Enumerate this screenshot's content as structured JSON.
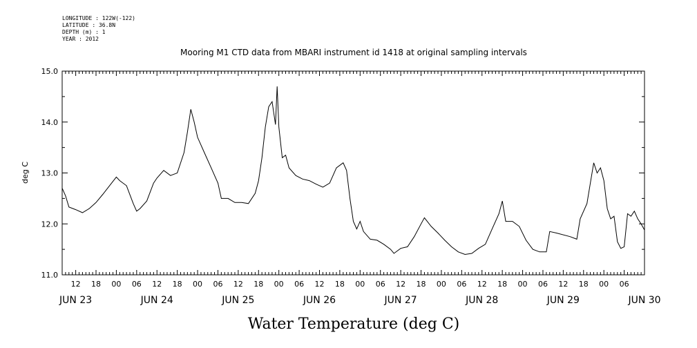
{
  "header": {
    "longitude": "LONGITUDE : 122W(-122)",
    "latitude": "LATITUDE : 36.8N",
    "depth": "DEPTH (m) : 1",
    "year": "YEAR : 2012"
  },
  "chart_data": {
    "type": "line",
    "title": "Mooring M1 CTD data from MBARI instrument id 1418 at original sampling intervals",
    "xlabel": "Water Temperature (deg C)",
    "ylabel": "deg C",
    "ylim": [
      11.0,
      15.0
    ],
    "xlim_hours_note": "JUN 23 08:00 to JUN 30 12:00",
    "y_ticks": [
      "11.0",
      "12.0",
      "13.0",
      "14.0",
      "15.0"
    ],
    "hour_tick_labels": [
      "12",
      "18",
      "00",
      "06",
      "12",
      "18",
      "00",
      "06",
      "12",
      "18",
      "00",
      "06",
      "12",
      "18",
      "00",
      "06",
      "12",
      "18",
      "00",
      "06",
      "12",
      "18",
      "00",
      "06",
      "12",
      "18",
      "00",
      "06"
    ],
    "day_labels": [
      "JUN 23",
      "JUN 24",
      "JUN 25",
      "JUN 26",
      "JUN 27",
      "JUN 28",
      "JUN 29",
      "JUN 30"
    ],
    "grid": false,
    "series": [
      {
        "line_color": "#000000",
        "points": [
          [
            "JUN 23 08:00",
            12.7
          ],
          [
            "JUN 23 09:00",
            12.55
          ],
          [
            "JUN 23 10:00",
            12.33
          ],
          [
            "JUN 23 12:00",
            12.28
          ],
          [
            "JUN 23 14:00",
            12.22
          ],
          [
            "JUN 23 16:00",
            12.3
          ],
          [
            "JUN 23 18:00",
            12.42
          ],
          [
            "JUN 23 20:00",
            12.58
          ],
          [
            "JUN 23 22:00",
            12.75
          ],
          [
            "JUN 24 00:00",
            12.92
          ],
          [
            "JUN 24 01:00",
            12.85
          ],
          [
            "JUN 24 03:00",
            12.75
          ],
          [
            "JUN 24 05:00",
            12.4
          ],
          [
            "JUN 24 06:00",
            12.25
          ],
          [
            "JUN 24 07:00",
            12.3
          ],
          [
            "JUN 24 09:00",
            12.45
          ],
          [
            "JUN 24 11:00",
            12.8
          ],
          [
            "JUN 24 12:00",
            12.9
          ],
          [
            "JUN 24 14:00",
            13.05
          ],
          [
            "JUN 24 16:00",
            12.95
          ],
          [
            "JUN 24 18:00",
            13.0
          ],
          [
            "JUN 24 20:00",
            13.4
          ],
          [
            "JUN 24 21:00",
            13.8
          ],
          [
            "JUN 24 22:00",
            14.25
          ],
          [
            "JUN 24 23:00",
            14.0
          ],
          [
            "JUN 25 00:00",
            13.7
          ],
          [
            "JUN 25 02:00",
            13.4
          ],
          [
            "JUN 25 04:00",
            13.1
          ],
          [
            "JUN 25 06:00",
            12.8
          ],
          [
            "JUN 25 07:00",
            12.5
          ],
          [
            "JUN 25 09:00",
            12.5
          ],
          [
            "JUN 25 11:00",
            12.42
          ],
          [
            "JUN 25 13:00",
            12.42
          ],
          [
            "JUN 25 15:00",
            12.4
          ],
          [
            "JUN 25 17:00",
            12.6
          ],
          [
            "JUN 25 18:00",
            12.85
          ],
          [
            "JUN 25 19:00",
            13.3
          ],
          [
            "JUN 25 20:00",
            13.9
          ],
          [
            "JUN 25 21:00",
            14.3
          ],
          [
            "JUN 25 22:00",
            14.4
          ],
          [
            "JUN 25 23:00",
            13.95
          ],
          [
            "JUN 25 23:30",
            14.7
          ],
          [
            "JUN 26 00:00",
            13.9
          ],
          [
            "JUN 26 01:00",
            13.3
          ],
          [
            "JUN 26 02:00",
            13.35
          ],
          [
            "JUN 26 03:00",
            13.1
          ],
          [
            "JUN 26 05:00",
            12.95
          ],
          [
            "JUN 26 07:00",
            12.88
          ],
          [
            "JUN 26 09:00",
            12.85
          ],
          [
            "JUN 26 11:00",
            12.78
          ],
          [
            "JUN 26 13:00",
            12.72
          ],
          [
            "JUN 26 15:00",
            12.8
          ],
          [
            "JUN 26 17:00",
            13.1
          ],
          [
            "JUN 26 19:00",
            13.2
          ],
          [
            "JUN 26 20:00",
            13.05
          ],
          [
            "JUN 26 21:00",
            12.5
          ],
          [
            "JUN 26 22:00",
            12.05
          ],
          [
            "JUN 26 23:00",
            11.9
          ],
          [
            "JUN 27 00:00",
            12.05
          ],
          [
            "JUN 27 01:00",
            11.85
          ],
          [
            "JUN 27 03:00",
            11.7
          ],
          [
            "JUN 27 05:00",
            11.68
          ],
          [
            "JUN 27 07:00",
            11.6
          ],
          [
            "JUN 27 09:00",
            11.5
          ],
          [
            "JUN 27 10:00",
            11.42
          ],
          [
            "JUN 27 12:00",
            11.52
          ],
          [
            "JUN 27 14:00",
            11.55
          ],
          [
            "JUN 27 16:00",
            11.75
          ],
          [
            "JUN 27 18:00",
            12.0
          ],
          [
            "JUN 27 19:00",
            12.12
          ],
          [
            "JUN 27 21:00",
            11.95
          ],
          [
            "JUN 27 23:00",
            11.82
          ],
          [
            "JUN 28 01:00",
            11.68
          ],
          [
            "JUN 28 03:00",
            11.55
          ],
          [
            "JUN 28 05:00",
            11.45
          ],
          [
            "JUN 28 07:00",
            11.4
          ],
          [
            "JUN 28 09:00",
            11.42
          ],
          [
            "JUN 28 11:00",
            11.52
          ],
          [
            "JUN 28 13:00",
            11.6
          ],
          [
            "JUN 28 15:00",
            11.9
          ],
          [
            "JUN 28 17:00",
            12.2
          ],
          [
            "JUN 28 18:00",
            12.45
          ],
          [
            "JUN 28 19:00",
            12.05
          ],
          [
            "JUN 28 21:00",
            12.05
          ],
          [
            "JUN 28 23:00",
            11.95
          ],
          [
            "JUN 29 01:00",
            11.68
          ],
          [
            "JUN 29 03:00",
            11.5
          ],
          [
            "JUN 29 05:00",
            11.45
          ],
          [
            "JUN 29 07:00",
            11.45
          ],
          [
            "JUN 29 08:00",
            11.85
          ],
          [
            "JUN 29 10:00",
            11.82
          ],
          [
            "JUN 29 14:00",
            11.75
          ],
          [
            "JUN 29 16:00",
            11.7
          ],
          [
            "JUN 29 17:00",
            12.1
          ],
          [
            "JUN 29 19:00",
            12.4
          ],
          [
            "JUN 29 20:00",
            12.8
          ],
          [
            "JUN 29 21:00",
            13.2
          ],
          [
            "JUN 29 22:00",
            13.0
          ],
          [
            "JUN 29 23:00",
            13.1
          ],
          [
            "JUN 30 00:00",
            12.85
          ],
          [
            "JUN 30 01:00",
            12.3
          ],
          [
            "JUN 30 02:00",
            12.1
          ],
          [
            "JUN 30 03:00",
            12.15
          ],
          [
            "JUN 30 04:00",
            11.65
          ],
          [
            "JUN 30 05:00",
            11.52
          ],
          [
            "JUN 30 06:00",
            11.55
          ],
          [
            "JUN 30 07:00",
            12.2
          ],
          [
            "JUN 30 08:00",
            12.15
          ],
          [
            "JUN 30 09:00",
            12.25
          ],
          [
            "JUN 30 10:00",
            12.1
          ],
          [
            "JUN 30 11:00",
            12.0
          ],
          [
            "JUN 30 12:00",
            11.88
          ]
        ]
      }
    ]
  }
}
